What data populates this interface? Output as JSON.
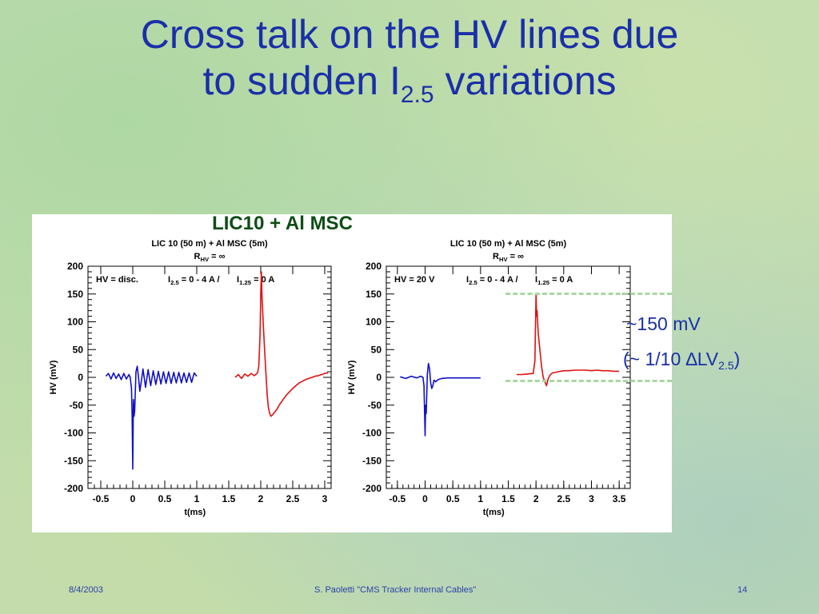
{
  "slide": {
    "title_line1": "Cross talk on the HV lines due",
    "title_line2_pre": "to sudden I",
    "title_line2_sub": "2.5",
    "title_line2_post": " variations",
    "panel_label": "LIC10 + Al MSC",
    "annotation_line1": "~150 mV",
    "annotation_line2_pre": "(~ 1/10 ",
    "annotation_delta": "∆",
    "annotation_lv": "LV",
    "annotation_sub": "2.5",
    "annotation_line2_post": ")",
    "footer_date": "8/4/2003",
    "footer_center": "S. Paoletti  \"CMS Tracker Internal Cables\"",
    "footer_page": "14"
  },
  "chart_data": [
    {
      "type": "line",
      "title": "LIC 10 (50 m) + Al MSC (5m)",
      "subtitle_pre": "R",
      "subtitle_sub": "HV",
      "subtitle_post": " = ∞",
      "annotation_left": "HV = disc.",
      "annotation_i25": "I",
      "annotation_i25_sub": "2.5",
      "annotation_i25_post": " = 0 - 4 A /",
      "annotation_i125": "I",
      "annotation_i125_sub": "1.25",
      "annotation_i125_post": " = 0 A",
      "xlabel": "t(ms)",
      "ylabel": "HV (mV)",
      "xlim": [
        -0.7,
        3.1
      ],
      "ylim": [
        -200,
        200
      ],
      "xticks": [
        -0.5,
        0,
        0.5,
        1,
        1.5,
        2,
        2.5,
        3
      ],
      "xtick_labels": [
        "-0.5",
        "0",
        "0.5",
        "1",
        "1.5",
        "2",
        "2.5",
        "3"
      ],
      "yticks": [
        200,
        150,
        100,
        50,
        0,
        -50,
        -100,
        -150,
        -200
      ],
      "ytick_labels": [
        "200",
        "150",
        "100",
        "50",
        "0",
        "-50",
        "-100",
        "-150",
        "-200"
      ],
      "grid": false,
      "series": [
        {
          "color": "#1010c8",
          "x": [
            -0.42,
            -0.38,
            -0.34,
            -0.3,
            -0.26,
            -0.22,
            -0.18,
            -0.14,
            -0.1,
            -0.06,
            -0.04,
            -0.02,
            -0.01,
            0.0,
            0.005,
            0.01,
            0.02,
            0.03,
            0.05,
            0.07,
            0.09,
            0.11,
            0.13,
            0.16,
            0.2,
            0.24,
            0.28,
            0.32,
            0.36,
            0.4,
            0.44,
            0.48,
            0.52,
            0.56,
            0.6,
            0.64,
            0.68,
            0.72,
            0.76,
            0.8,
            0.84,
            0.88,
            0.92,
            0.96,
            1.0
          ],
          "y": [
            2,
            7,
            -3,
            8,
            -2,
            6,
            -4,
            7,
            -3,
            5,
            0,
            -20,
            -70,
            -165,
            -100,
            -40,
            -70,
            -60,
            10,
            20,
            0,
            -25,
            -10,
            15,
            -18,
            14,
            -15,
            12,
            -13,
            11,
            -12,
            10,
            -11,
            10,
            -11,
            9,
            -10,
            9,
            -10,
            8,
            -9,
            8,
            -9,
            8,
            2
          ]
        },
        {
          "color": "#e01010",
          "x": [
            1.6,
            1.65,
            1.7,
            1.75,
            1.8,
            1.85,
            1.9,
            1.95,
            1.97,
            1.99,
            2.0,
            2.01,
            2.02,
            2.04,
            2.06,
            2.08,
            2.1,
            2.12,
            2.14,
            2.16,
            2.18,
            2.2,
            2.25,
            2.3,
            2.35,
            2.4,
            2.45,
            2.5,
            2.55,
            2.6,
            2.65,
            2.7,
            2.75,
            2.8,
            2.85,
            2.9,
            2.95,
            3.0,
            3.05
          ],
          "y": [
            0,
            5,
            -2,
            6,
            2,
            7,
            3,
            8,
            20,
            80,
            150,
            190,
            145,
            95,
            50,
            10,
            -30,
            -55,
            -65,
            -70,
            -68,
            -65,
            -58,
            -48,
            -40,
            -32,
            -26,
            -20,
            -15,
            -10,
            -7,
            -4,
            -2,
            0,
            2,
            3,
            5,
            7,
            8
          ]
        }
      ]
    },
    {
      "type": "line",
      "title": "LIC 10 (50 m) + Al MSC (5m)",
      "subtitle_pre": "R",
      "subtitle_sub": "HV",
      "subtitle_post": " = ∞",
      "annotation_left": "HV = 20 V",
      "annotation_i25": "I",
      "annotation_i25_sub": "2.5",
      "annotation_i25_post": " = 0 - 4 A /",
      "annotation_i125": "I",
      "annotation_i125_sub": "1.25",
      "annotation_i125_post": " = 0 A",
      "xlabel": "t(ms)",
      "ylabel": "HV (mV)",
      "xlim": [
        -0.7,
        3.7
      ],
      "ylim": [
        -200,
        200
      ],
      "xticks": [
        -0.5,
        0,
        0.5,
        1,
        1.5,
        2,
        2.5,
        3,
        3.5
      ],
      "xtick_labels": [
        "-0.5",
        "0",
        "0.5",
        "1",
        "1.5",
        "2",
        "2.5",
        "3",
        "3.5"
      ],
      "yticks": [
        200,
        150,
        100,
        50,
        0,
        -50,
        -100,
        -150,
        -200
      ],
      "ytick_labels": [
        "200",
        "150",
        "100",
        "50",
        "0",
        "-50",
        "-100",
        "-150",
        "-200"
      ],
      "grid": false,
      "series": [
        {
          "color": "#1010c8",
          "x": [
            -0.45,
            -0.35,
            -0.25,
            -0.15,
            -0.08,
            -0.04,
            -0.02,
            -0.01,
            0.0,
            0.01,
            0.02,
            0.04,
            0.06,
            0.08,
            0.1,
            0.12,
            0.14,
            0.16,
            0.19,
            0.22,
            0.26,
            0.3,
            0.4,
            0.5,
            0.6,
            0.7,
            0.8,
            0.9,
            1.0
          ],
          "y": [
            1,
            -2,
            2,
            -1,
            2,
            0,
            -15,
            -60,
            -105,
            -50,
            -65,
            5,
            25,
            15,
            -10,
            -20,
            -15,
            -5,
            -8,
            -5,
            -3,
            -2,
            -1,
            -1,
            -1,
            -1,
            -1,
            -1,
            -1
          ]
        },
        {
          "color": "#e01010",
          "x": [
            1.65,
            1.75,
            1.85,
            1.95,
            1.98,
            2.0,
            2.01,
            2.02,
            2.04,
            2.07,
            2.1,
            2.13,
            2.16,
            2.19,
            2.22,
            2.26,
            2.3,
            2.4,
            2.5,
            2.6,
            2.7,
            2.8,
            2.9,
            3.0,
            3.1,
            3.2,
            3.3,
            3.4,
            3.5
          ],
          "y": [
            5,
            5,
            6,
            7,
            30,
            150,
            110,
            120,
            80,
            50,
            20,
            0,
            -8,
            -15,
            -2,
            5,
            8,
            10,
            12,
            12,
            13,
            13,
            13,
            12,
            13,
            12,
            12,
            11,
            11
          ]
        }
      ]
    }
  ]
}
